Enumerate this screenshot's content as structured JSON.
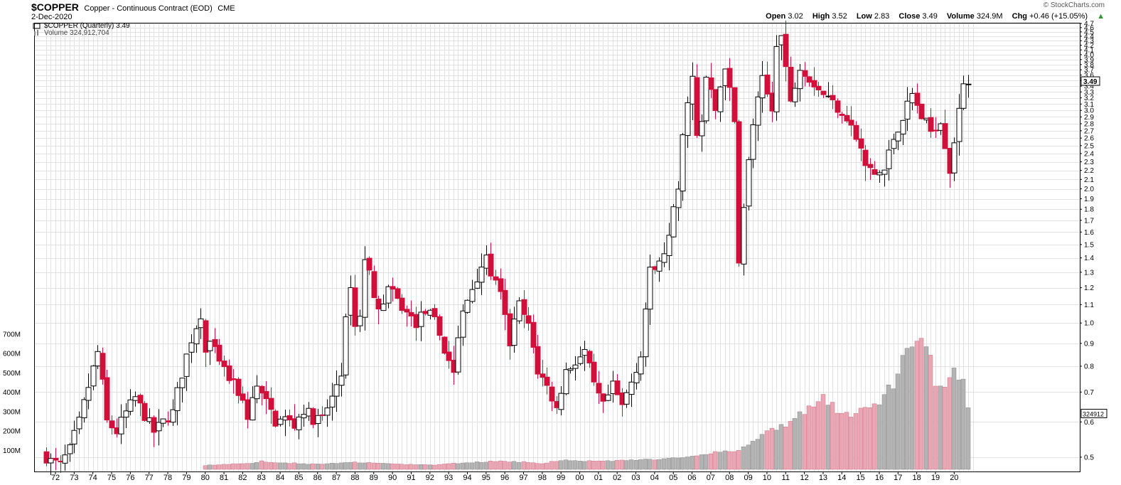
{
  "header": {
    "symbol": "$COPPER",
    "description": "Copper - Continuous Contract (EOD)",
    "exchange": "CME",
    "date": "2-Dec-2020",
    "brand": "© StockCharts.com",
    "open_label": "Open",
    "open": "3.02",
    "high_label": "High",
    "high": "3.52",
    "low_label": "Low",
    "low": "2.83",
    "close_label": "Close",
    "close": "3.49",
    "volume_label": "Volume",
    "volume": "324.9M",
    "chg_label": "Chg",
    "chg": "+0.46 (+15.05%)"
  },
  "legend": {
    "price": "$COPPER (Quarterly) 3.49",
    "volume": "Volume 324,912,704"
  },
  "colors": {
    "up": "#ffffff",
    "down": "#d0103a",
    "vol_up": "#b3b3b3",
    "vol_down": "#e9a7b4",
    "grid": "#e2e2e2"
  },
  "chart_data": {
    "type": "candlestick",
    "period": "Quarterly",
    "y_scale": "log",
    "ylim": [
      0.48,
      4.7
    ],
    "y_ticks": [
      0.5,
      0.6,
      0.7,
      0.8,
      0.9,
      1.0,
      1.1,
      1.2,
      1.3,
      1.4,
      1.5,
      1.6,
      1.7,
      1.8,
      1.9,
      2.0,
      2.1,
      2.2,
      2.3,
      2.4,
      2.5,
      2.6,
      2.7,
      2.8,
      2.9,
      3.0,
      3.1,
      3.2,
      3.3,
      3.4,
      3.5,
      3.6,
      3.7,
      3.8,
      3.9,
      4.0,
      4.1,
      4.2,
      4.3,
      4.4,
      4.5,
      4.6,
      4.7
    ],
    "y_tick_labels": [
      "0.5",
      "0.6",
      "0.7",
      "0.8",
      "0.9",
      "1.0",
      "1.1",
      "1.2",
      "1.3",
      "1.4",
      "1.5",
      "1.6",
      "1.7",
      "1.8",
      "1.9",
      "2.0",
      "2.1",
      "2.2",
      "2.3",
      "2.4",
      "2.5",
      "2.6",
      "2.7",
      "2.8",
      "2.9",
      "3.0",
      "3.1",
      "3.2",
      "3.3",
      "3.4",
      "3.5",
      "3.6",
      "3.7",
      "3.8",
      "3.9",
      "4.0",
      "4.1",
      "4.2",
      "4.3",
      "4.4",
      "4.5",
      "4.6",
      "4.7"
    ],
    "x_tick_labels": [
      "72",
      "73",
      "74",
      "75",
      "76",
      "77",
      "78",
      "79",
      "80",
      "81",
      "82",
      "83",
      "84",
      "85",
      "86",
      "87",
      "88",
      "89",
      "90",
      "91",
      "92",
      "93",
      "94",
      "95",
      "96",
      "97",
      "98",
      "99",
      "00",
      "01",
      "02",
      "03",
      "04",
      "05",
      "06",
      "07",
      "08",
      "09",
      "10",
      "11",
      "12",
      "13",
      "14",
      "15",
      "16",
      "17",
      "18",
      "19",
      "20"
    ],
    "volume_axis": {
      "labels": [
        "100M",
        "200M",
        "300M",
        "400M",
        "500M",
        "600M",
        "700M"
      ],
      "values": [
        100,
        200,
        300,
        400,
        500,
        600,
        700
      ],
      "max": 760,
      "unit": "M"
    },
    "last_price_label": "3.49",
    "last_volume_label": "324912",
    "anchors": [
      [
        1971.5,
        0.51
      ],
      [
        1972.0,
        0.49
      ],
      [
        1972.5,
        0.48
      ],
      [
        1973.0,
        0.52
      ],
      [
        1973.5,
        0.6
      ],
      [
        1974.0,
        0.72
      ],
      [
        1974.5,
        0.86
      ],
      [
        1975.0,
        0.6
      ],
      [
        1975.5,
        0.57
      ],
      [
        1976.0,
        0.63
      ],
      [
        1976.5,
        0.68
      ],
      [
        1977.0,
        0.62
      ],
      [
        1977.5,
        0.57
      ],
      [
        1978.0,
        0.6
      ],
      [
        1978.5,
        0.63
      ],
      [
        1979.0,
        0.77
      ],
      [
        1979.5,
        0.92
      ],
      [
        1980.0,
        1.05
      ],
      [
        1980.25,
        0.86
      ],
      [
        1980.5,
        0.9
      ],
      [
        1980.75,
        0.86
      ],
      [
        1981.0,
        0.81
      ],
      [
        1981.5,
        0.75
      ],
      [
        1982.0,
        0.7
      ],
      [
        1982.5,
        0.62
      ],
      [
        1983.0,
        0.72
      ],
      [
        1983.5,
        0.66
      ],
      [
        1984.0,
        0.6
      ],
      [
        1984.5,
        0.61
      ],
      [
        1985.0,
        0.59
      ],
      [
        1985.5,
        0.64
      ],
      [
        1986.0,
        0.61
      ],
      [
        1986.5,
        0.61
      ],
      [
        1987.0,
        0.68
      ],
      [
        1987.5,
        0.78
      ],
      [
        1988.0,
        1.23
      ],
      [
        1988.25,
        0.98
      ],
      [
        1988.5,
        1.05
      ],
      [
        1988.75,
        1.38
      ],
      [
        1989.0,
        1.3
      ],
      [
        1989.5,
        1.05
      ],
      [
        1990.0,
        1.2
      ],
      [
        1990.5,
        1.12
      ],
      [
        1991.0,
        1.05
      ],
      [
        1991.5,
        1.0
      ],
      [
        1992.0,
        1.07
      ],
      [
        1992.5,
        1.01
      ],
      [
        1993.0,
        0.87
      ],
      [
        1993.5,
        0.78
      ],
      [
        1994.0,
        1.05
      ],
      [
        1994.5,
        1.2
      ],
      [
        1995.0,
        1.35
      ],
      [
        1995.25,
        1.38
      ],
      [
        1995.5,
        1.3
      ],
      [
        1996.0,
        1.15
      ],
      [
        1996.5,
        0.9
      ],
      [
        1997.0,
        1.1
      ],
      [
        1997.5,
        0.98
      ],
      [
        1998.0,
        0.78
      ],
      [
        1998.5,
        0.72
      ],
      [
        1999.0,
        0.64
      ],
      [
        1999.5,
        0.78
      ],
      [
        2000.0,
        0.82
      ],
      [
        2000.5,
        0.86
      ],
      [
        2001.0,
        0.72
      ],
      [
        2001.5,
        0.65
      ],
      [
        2002.0,
        0.72
      ],
      [
        2002.5,
        0.65
      ],
      [
        2003.0,
        0.74
      ],
      [
        2003.5,
        0.85
      ],
      [
        2004.0,
        1.3
      ],
      [
        2004.5,
        1.35
      ],
      [
        2005.0,
        1.55
      ],
      [
        2005.5,
        2.0
      ],
      [
        2006.0,
        3.2
      ],
      [
        2006.25,
        3.55
      ],
      [
        2006.5,
        2.6
      ],
      [
        2006.75,
        2.8
      ],
      [
        2007.0,
        3.55
      ],
      [
        2007.5,
        3.0
      ],
      [
        2008.0,
        3.8
      ],
      [
        2008.5,
        2.8
      ],
      [
        2008.75,
        1.4
      ],
      [
        2009.0,
        1.8
      ],
      [
        2009.5,
        2.8
      ],
      [
        2010.0,
        3.5
      ],
      [
        2010.5,
        3.0
      ],
      [
        2010.75,
        4.3
      ],
      [
        2011.0,
        4.4
      ],
      [
        2011.5,
        3.1
      ],
      [
        2012.0,
        3.8
      ],
      [
        2012.5,
        3.55
      ],
      [
        2013.0,
        3.35
      ],
      [
        2013.5,
        3.2
      ],
      [
        2014.0,
        3.05
      ],
      [
        2014.5,
        2.9
      ],
      [
        2015.0,
        2.6
      ],
      [
        2015.5,
        2.25
      ],
      [
        2016.0,
        2.15
      ],
      [
        2016.5,
        2.2
      ],
      [
        2017.0,
        2.6
      ],
      [
        2017.5,
        2.9
      ],
      [
        2018.0,
        3.25
      ],
      [
        2018.5,
        2.9
      ],
      [
        2019.0,
        2.7
      ],
      [
        2019.5,
        2.85
      ],
      [
        2020.0,
        2.2
      ],
      [
        2020.5,
        2.95
      ],
      [
        2020.75,
        3.49
      ]
    ],
    "volume_anchors": [
      [
        1979.9,
        20
      ],
      [
        1982.5,
        32
      ],
      [
        1983.0,
        42
      ],
      [
        1984.0,
        35
      ],
      [
        1986.0,
        26
      ],
      [
        1988.0,
        36
      ],
      [
        1990.0,
        28
      ],
      [
        1992.0,
        22
      ],
      [
        1994.0,
        35
      ],
      [
        1995.5,
        42
      ],
      [
        1997.0,
        38
      ],
      [
        1998.0,
        30
      ],
      [
        1999.0,
        48
      ],
      [
        2000.0,
        42
      ],
      [
        2002.0,
        44
      ],
      [
        2004.0,
        52
      ],
      [
        2005.5,
        58
      ],
      [
        2007.0,
        85
      ],
      [
        2008.5,
        100
      ],
      [
        2009.5,
        150
      ],
      [
        2010.0,
        200
      ],
      [
        2011.0,
        235
      ],
      [
        2012.0,
        300
      ],
      [
        2013.0,
        380
      ],
      [
        2014.0,
        270
      ],
      [
        2015.0,
        300
      ],
      [
        2016.0,
        350
      ],
      [
        2017.0,
        480
      ],
      [
        2017.5,
        620
      ],
      [
        2018.0,
        640
      ],
      [
        2018.5,
        680
      ],
      [
        2019.0,
        440
      ],
      [
        2019.5,
        400
      ],
      [
        2020.0,
        530
      ],
      [
        2020.5,
        460
      ],
      [
        2020.75,
        325
      ]
    ]
  }
}
